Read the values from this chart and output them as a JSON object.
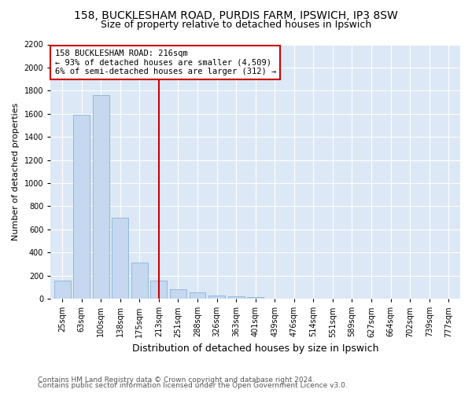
{
  "title1": "158, BUCKLESHAM ROAD, PURDIS FARM, IPSWICH, IP3 8SW",
  "title2": "Size of property relative to detached houses in Ipswich",
  "xlabel": "Distribution of detached houses by size in Ipswich",
  "ylabel": "Number of detached properties",
  "bar_labels": [
    "25sqm",
    "63sqm",
    "100sqm",
    "138sqm",
    "175sqm",
    "213sqm",
    "251sqm",
    "288sqm",
    "326sqm",
    "363sqm",
    "401sqm",
    "439sqm",
    "476sqm",
    "514sqm",
    "551sqm",
    "589sqm",
    "627sqm",
    "664sqm",
    "702sqm",
    "739sqm",
    "777sqm"
  ],
  "bar_values": [
    160,
    1590,
    1760,
    700,
    315,
    160,
    85,
    55,
    30,
    20,
    15,
    0,
    0,
    0,
    0,
    0,
    0,
    0,
    0,
    0,
    0
  ],
  "bar_color": "#c5d8f0",
  "bar_edgecolor": "#7aabcf",
  "vline_x_index": 5,
  "vline_color": "#cc0000",
  "annotation_line1": "158 BUCKLESHAM ROAD: 216sqm",
  "annotation_line2": "← 93% of detached houses are smaller (4,509)",
  "annotation_line3": "6% of semi-detached houses are larger (312) →",
  "annotation_box_edgecolor": "#cc0000",
  "annotation_box_facecolor": "white",
  "ylim": [
    0,
    2200
  ],
  "yticks": [
    0,
    200,
    400,
    600,
    800,
    1000,
    1200,
    1400,
    1600,
    1800,
    2000,
    2200
  ],
  "bg_color": "#dce8f5",
  "grid_color": "white",
  "footer1": "Contains HM Land Registry data © Crown copyright and database right 2024.",
  "footer2": "Contains public sector information licensed under the Open Government Licence v3.0.",
  "title1_fontsize": 10,
  "title2_fontsize": 9,
  "xlabel_fontsize": 9,
  "ylabel_fontsize": 8,
  "tick_fontsize": 7,
  "footer_fontsize": 6.5,
  "annot_fontsize": 7.5
}
